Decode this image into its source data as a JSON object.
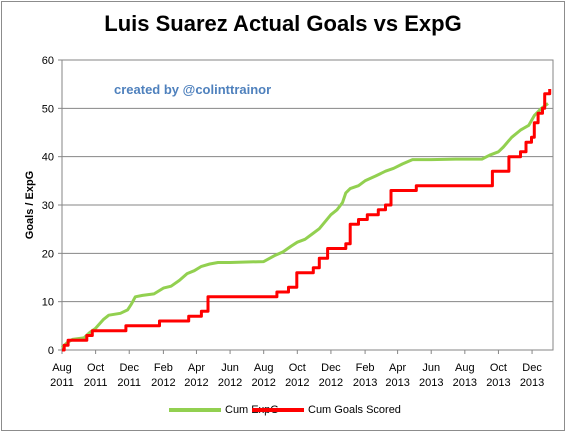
{
  "chart_data": {
    "type": "line",
    "title": "Luis Suarez Actual Goals vs ExpG",
    "annotation": "created by @colinttrainor",
    "xlabel": "",
    "ylabel": "Goals / ExpG",
    "ylim": [
      0,
      60
    ],
    "y_ticks": [
      0,
      10,
      20,
      30,
      40,
      50,
      60
    ],
    "x_ticks": [
      {
        "month": "Aug",
        "year": "2011"
      },
      {
        "month": "Oct",
        "year": "2011"
      },
      {
        "month": "Dec",
        "year": "2011"
      },
      {
        "month": "Feb",
        "year": "2012"
      },
      {
        "month": "Apr",
        "year": "2012"
      },
      {
        "month": "Jun",
        "year": "2012"
      },
      {
        "month": "Aug",
        "year": "2012"
      },
      {
        "month": "Oct",
        "year": "2012"
      },
      {
        "month": "Dec",
        "year": "2012"
      },
      {
        "month": "Feb",
        "year": "2013"
      },
      {
        "month": "Apr",
        "year": "2013"
      },
      {
        "month": "Jun",
        "year": "2013"
      },
      {
        "month": "Aug",
        "year": "2013"
      },
      {
        "month": "Oct",
        "year": "2013"
      },
      {
        "month": "Dec",
        "year": "2013"
      }
    ],
    "grid": "horizontal",
    "legend_position": "bottom",
    "series": [
      {
        "name": "Cum ExpG",
        "color": "#92d050",
        "step": false,
        "points": [
          [
            "2011-08-01",
            0.5
          ],
          [
            "2011-08-10",
            1.5
          ],
          [
            "2011-08-20",
            2.2
          ],
          [
            "2011-09-10",
            2.5
          ],
          [
            "2011-09-20",
            3.6
          ],
          [
            "2011-10-01",
            4.5
          ],
          [
            "2011-10-15",
            6.3
          ],
          [
            "2011-10-25",
            7.2
          ],
          [
            "2011-11-15",
            7.6
          ],
          [
            "2011-11-28",
            8.3
          ],
          [
            "2011-12-05",
            9.5
          ],
          [
            "2011-12-12",
            11.0
          ],
          [
            "2011-12-25",
            11.3
          ],
          [
            "2012-01-15",
            11.6
          ],
          [
            "2012-02-01",
            12.8
          ],
          [
            "2012-02-15",
            13.2
          ],
          [
            "2012-03-01",
            14.4
          ],
          [
            "2012-03-15",
            15.8
          ],
          [
            "2012-03-28",
            16.4
          ],
          [
            "2012-04-10",
            17.3
          ],
          [
            "2012-04-25",
            17.8
          ],
          [
            "2012-05-10",
            18.1
          ],
          [
            "2012-06-01",
            18.1
          ],
          [
            "2012-07-01",
            18.2
          ],
          [
            "2012-08-01",
            18.3
          ],
          [
            "2012-08-20",
            19.5
          ],
          [
            "2012-09-05",
            20.3
          ],
          [
            "2012-09-20",
            21.5
          ],
          [
            "2012-10-01",
            22.3
          ],
          [
            "2012-10-15",
            22.9
          ],
          [
            "2012-10-28",
            24.0
          ],
          [
            "2012-11-10",
            25.1
          ],
          [
            "2012-11-20",
            26.5
          ],
          [
            "2012-12-01",
            28.0
          ],
          [
            "2012-12-12",
            29.0
          ],
          [
            "2012-12-22",
            30.5
          ],
          [
            "2012-12-28",
            32.5
          ],
          [
            "2013-01-05",
            33.4
          ],
          [
            "2013-01-20",
            34.0
          ],
          [
            "2013-02-01",
            35.0
          ],
          [
            "2013-02-20",
            36.0
          ],
          [
            "2013-03-10",
            37.0
          ],
          [
            "2013-03-25",
            37.6
          ],
          [
            "2013-04-10",
            38.5
          ],
          [
            "2013-04-28",
            39.4
          ],
          [
            "2013-06-01",
            39.4
          ],
          [
            "2013-07-15",
            39.5
          ],
          [
            "2013-08-01",
            39.5
          ],
          [
            "2013-09-01",
            39.5
          ],
          [
            "2013-09-15",
            40.3
          ],
          [
            "2013-10-01",
            41.0
          ],
          [
            "2013-10-10",
            42.0
          ],
          [
            "2013-10-25",
            44.0
          ],
          [
            "2013-11-10",
            45.5
          ],
          [
            "2013-11-25",
            46.5
          ],
          [
            "2013-12-05",
            48.5
          ],
          [
            "2013-12-18",
            50.0
          ],
          [
            "2013-12-30",
            51.0
          ]
        ]
      },
      {
        "name": "Cum Goals Scored",
        "color": "#ff0000",
        "step": true,
        "points": [
          [
            "2011-08-01",
            0
          ],
          [
            "2011-08-05",
            1
          ],
          [
            "2011-08-12",
            2
          ],
          [
            "2011-09-15",
            3
          ],
          [
            "2011-09-25",
            4
          ],
          [
            "2011-11-25",
            5
          ],
          [
            "2012-01-25",
            6
          ],
          [
            "2012-03-18",
            7
          ],
          [
            "2012-04-10",
            8
          ],
          [
            "2012-04-22",
            11
          ],
          [
            "2012-08-25",
            12
          ],
          [
            "2012-09-15",
            13
          ],
          [
            "2012-09-30",
            16
          ],
          [
            "2012-10-30",
            17
          ],
          [
            "2012-11-10",
            19
          ],
          [
            "2012-11-25",
            21
          ],
          [
            "2012-12-28",
            22
          ],
          [
            "2013-01-05",
            26
          ],
          [
            "2013-01-20",
            27
          ],
          [
            "2013-02-05",
            28
          ],
          [
            "2013-02-25",
            29
          ],
          [
            "2013-03-10",
            30
          ],
          [
            "2013-03-20",
            33
          ],
          [
            "2013-05-05",
            34
          ],
          [
            "2013-09-20",
            37
          ],
          [
            "2013-10-20",
            40
          ],
          [
            "2013-11-10",
            41
          ],
          [
            "2013-11-20",
            43
          ],
          [
            "2013-11-30",
            44
          ],
          [
            "2013-12-05",
            47
          ],
          [
            "2013-12-12",
            49
          ],
          [
            "2013-12-20",
            50
          ],
          [
            "2013-12-24",
            53
          ],
          [
            "2014-01-02",
            54
          ]
        ]
      }
    ]
  }
}
